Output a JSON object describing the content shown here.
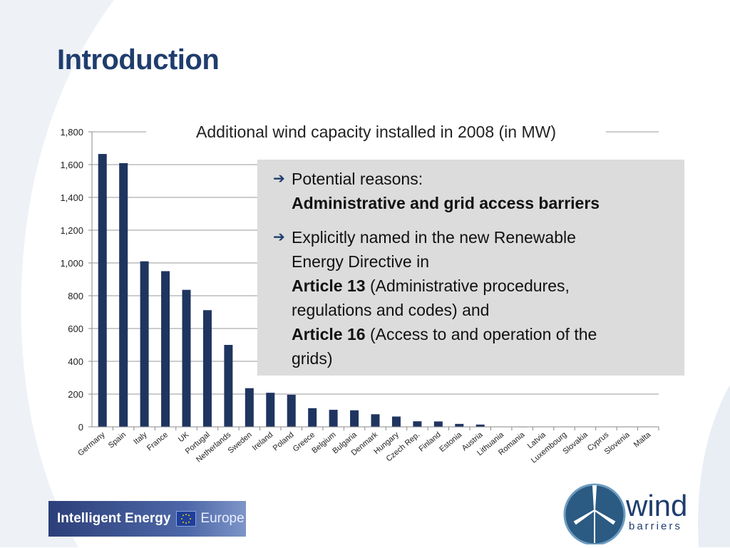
{
  "slide": {
    "title": "Introduction"
  },
  "callout": {
    "bullet1_line1": "Potential reasons:",
    "bullet1_line2": "Administrative and grid access barriers",
    "bullet2_line1": "Explicitly named in the new Renewable",
    "bullet2_line2": "Energy  Directive in",
    "article13": "Article 13",
    "article13_text": " (Administrative procedures,",
    "bullet2_line4": "regulations and codes) and",
    "article16": "Article 16",
    "article16_text": " (Access to and operation of the",
    "bullet2_line6": "grids)"
  },
  "logos": {
    "iee_text": "Intelligent Energy",
    "iee_europe": "Europe",
    "wind": "wind",
    "barriers": "barriers"
  },
  "colors": {
    "bar": "#1f3560",
    "title": "#1f3d6e",
    "callout_bg": "#dcdcdc"
  },
  "icons": {
    "bullet": "arrow-right-icon",
    "flag": "eu-flag-icon",
    "turbine": "wind-turbine-icon"
  },
  "chart_data": {
    "type": "bar",
    "title": "Additional wind capacity installed in 2008 (in MW)",
    "xlabel": "",
    "ylabel": "",
    "ylim": [
      0,
      1800
    ],
    "yticks": [
      "0",
      "200",
      "400",
      "600",
      "800",
      "1,000",
      "1,200",
      "1,400",
      "1,600",
      "1,800"
    ],
    "grid": true,
    "categories": [
      "Germany",
      "Spain",
      "Italy",
      "France",
      "UK",
      "Portugal",
      "Netherlands",
      "Sweden",
      "Ireland",
      "Poland",
      "Greece",
      "Belgium",
      "Bulgaria",
      "Denmark",
      "Hungary",
      "Czech Rep.",
      "Finland",
      "Estonia",
      "Austria",
      "Lithuania",
      "Romania",
      "Latvia",
      "Luxembourg",
      "Slovakia",
      "Cyprus",
      "Slovenia",
      "Malta"
    ],
    "values": [
      1665,
      1609,
      1010,
      950,
      836,
      712,
      500,
      236,
      208,
      196,
      114,
      104,
      101,
      77,
      63,
      34,
      33,
      18,
      14,
      2,
      1,
      0,
      0,
      0,
      0,
      0,
      0
    ]
  }
}
